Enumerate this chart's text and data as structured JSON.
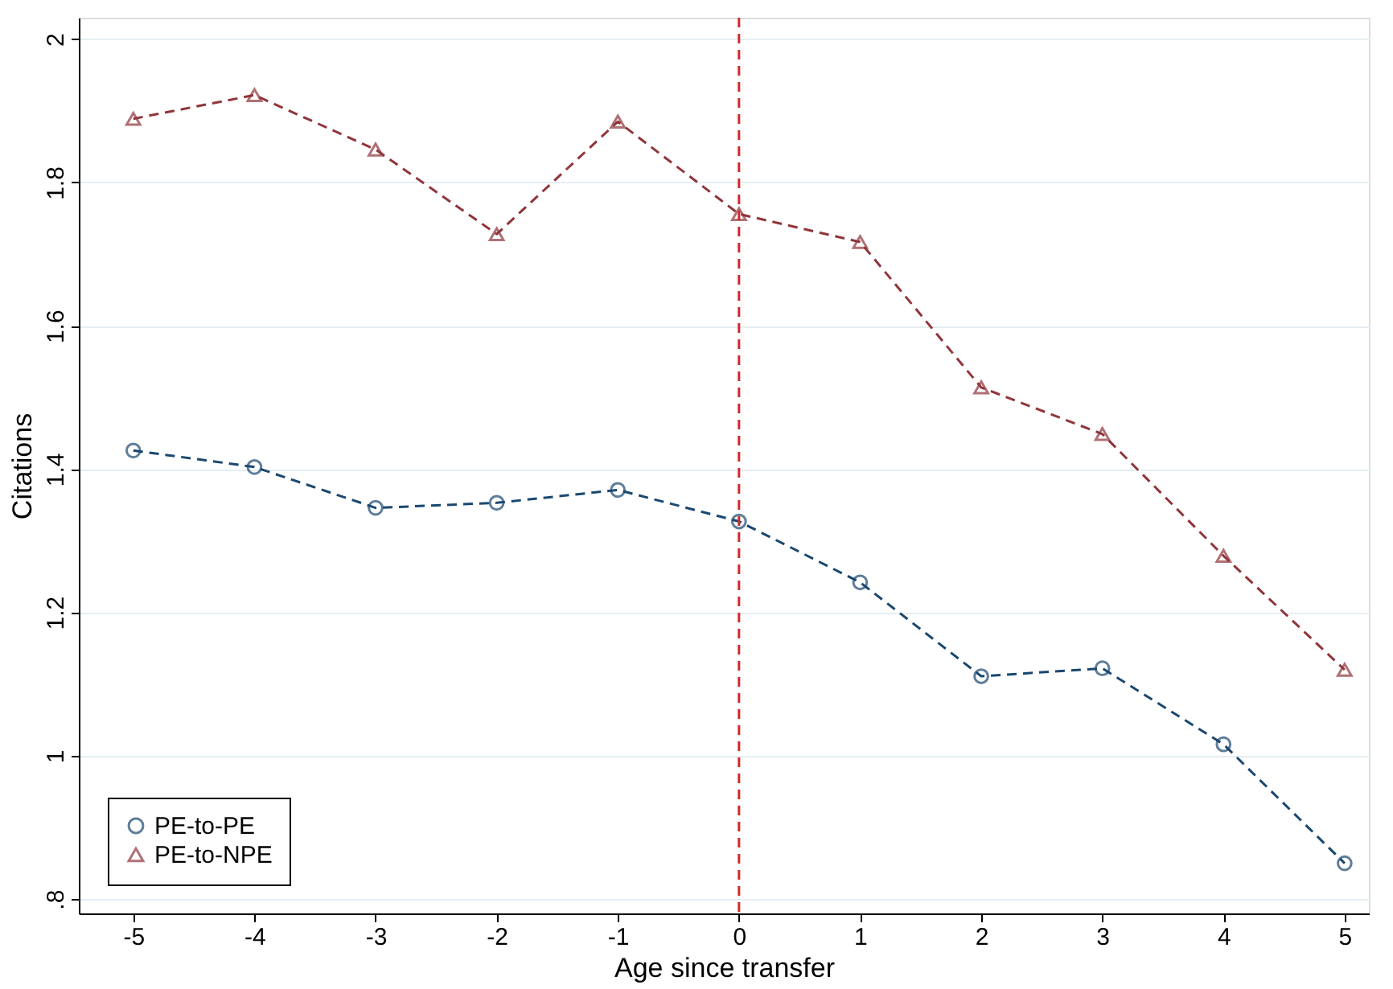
{
  "chart_data": {
    "type": "line",
    "xlabel": "Age since transfer",
    "ylabel": "Citations",
    "x": [
      -5,
      -4,
      -3,
      -2,
      -1,
      0,
      1,
      2,
      3,
      4,
      5
    ],
    "series": [
      {
        "name": "PE-to-PE",
        "color": "#1a476f",
        "marker": "circle",
        "line_style": "dashed",
        "values": [
          1.426,
          1.403,
          1.346,
          1.353,
          1.371,
          1.327,
          1.242,
          1.111,
          1.122,
          1.016,
          0.85
        ]
      },
      {
        "name": "PE-to-NPE",
        "color": "#90353b",
        "marker": "triangle",
        "line_style": "dashed",
        "values": [
          1.889,
          1.922,
          1.846,
          1.728,
          1.885,
          1.756,
          1.717,
          1.514,
          1.449,
          1.279,
          1.12
        ]
      }
    ],
    "xlim": [
      -5.45,
      5.2
    ],
    "xticks": [
      -5,
      -4,
      -3,
      -2,
      -1,
      0,
      1,
      2,
      3,
      4,
      5
    ],
    "ylim": [
      0.78,
      2.03
    ],
    "yticks": [
      {
        "value": 0.8,
        "label": ".8"
      },
      1,
      1.2,
      1.4,
      1.6,
      1.8,
      2
    ],
    "grid": "y",
    "legend": "bottom left",
    "ref_lines": [
      {
        "axis": "x",
        "value": 0,
        "color": "#d62728",
        "line_style": "dashed"
      }
    ]
  }
}
